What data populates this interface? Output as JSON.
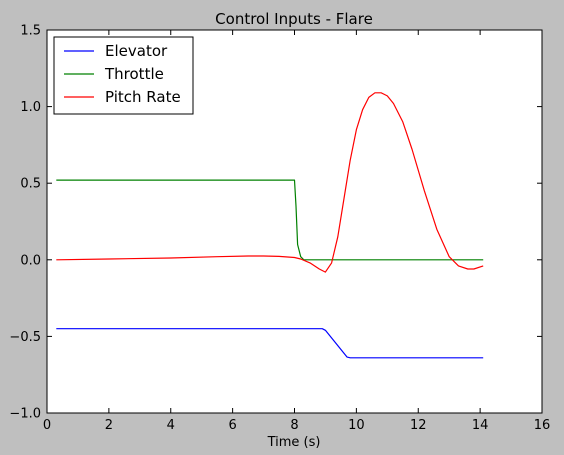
{
  "chart_data": {
    "type": "line",
    "title": "Control Inputs - Flare",
    "xlabel": "Time (s)",
    "ylabel": "",
    "xlim": [
      0,
      16
    ],
    "ylim": [
      -1.0,
      1.5
    ],
    "xticks": [
      0,
      2,
      4,
      6,
      8,
      10,
      12,
      14,
      16
    ],
    "xtick_labels": [
      "0",
      "2",
      "4",
      "6",
      "8",
      "10",
      "12",
      "14",
      "16"
    ],
    "yticks": [
      -1.0,
      -0.5,
      0.0,
      0.5,
      1.0,
      1.5
    ],
    "ytick_labels": [
      "−1.0",
      "−0.5",
      "0.0",
      "0.5",
      "1.0",
      "1.5"
    ],
    "grid": false,
    "legend_position": "top-left",
    "series": [
      {
        "name": "Elevator",
        "color": "#0000ff",
        "x": [
          0.3,
          8.9,
          9.0,
          9.7,
          9.8,
          14.1
        ],
        "y": [
          -0.45,
          -0.45,
          -0.46,
          -0.635,
          -0.64,
          -0.64
        ]
      },
      {
        "name": "Throttle",
        "color": "#008000",
        "x": [
          0.3,
          8.0,
          8.05,
          8.1,
          8.2,
          8.3,
          14.1
        ],
        "y": [
          0.52,
          0.52,
          0.35,
          0.1,
          0.02,
          0.0,
          0.0
        ]
      },
      {
        "name": "Pitch Rate",
        "color": "#ff0000",
        "x": [
          0.3,
          2.0,
          4.0,
          5.5,
          6.5,
          7.0,
          7.5,
          8.0,
          8.2,
          8.5,
          8.8,
          9.0,
          9.2,
          9.4,
          9.6,
          9.8,
          10.0,
          10.2,
          10.4,
          10.6,
          10.8,
          11.0,
          11.2,
          11.5,
          11.8,
          12.2,
          12.6,
          13.0,
          13.3,
          13.6,
          13.8,
          14.1
        ],
        "y": [
          0.0,
          0.005,
          0.012,
          0.02,
          0.025,
          0.025,
          0.022,
          0.015,
          0.005,
          -0.02,
          -0.06,
          -0.08,
          -0.02,
          0.15,
          0.4,
          0.65,
          0.85,
          0.98,
          1.06,
          1.09,
          1.09,
          1.07,
          1.02,
          0.9,
          0.72,
          0.45,
          0.2,
          0.02,
          -0.04,
          -0.06,
          -0.06,
          -0.04
        ]
      }
    ]
  }
}
